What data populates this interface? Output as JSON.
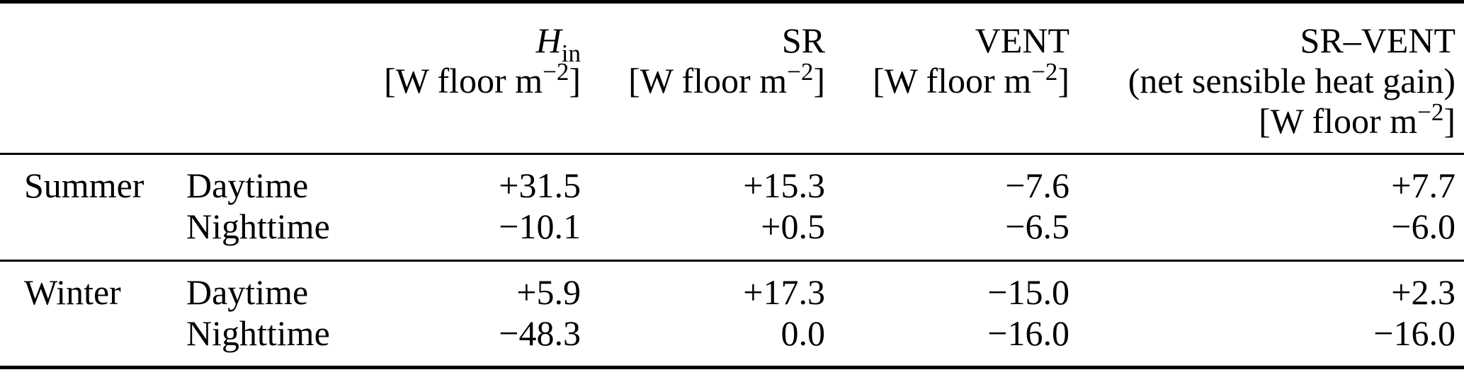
{
  "colors": {
    "text": "#000000",
    "background": "#ffffff",
    "rule": "#000000"
  },
  "table": {
    "header": {
      "h_in": {
        "symbol": "H",
        "subscript": "in",
        "unit_open": "[W floor m",
        "unit_exponent": "−2",
        "unit_close": "]"
      },
      "sr": {
        "label": "SR",
        "unit_open": "[W floor m",
        "unit_exponent": "−2",
        "unit_close": "]"
      },
      "vent": {
        "label": "VENT",
        "unit_open": "[W floor m",
        "unit_exponent": "−2",
        "unit_close": "]"
      },
      "sr_vent": {
        "label": "SR–VENT",
        "note": "(net sensible heat gain)",
        "unit_open": "[W floor m",
        "unit_exponent": "−2",
        "unit_close": "]"
      }
    },
    "rows": [
      {
        "season": "Summer",
        "time": "Daytime",
        "h_in": "+31.5",
        "sr": "+15.3",
        "vent": "−7.6",
        "sr_vent": "+7.7"
      },
      {
        "season": "",
        "time": "Nighttime",
        "h_in": "−10.1",
        "sr": "+0.5",
        "vent": "−6.5",
        "sr_vent": "−6.0"
      },
      {
        "season": "Winter",
        "time": "Daytime",
        "h_in": "+5.9",
        "sr": "+17.3",
        "vent": "−15.0",
        "sr_vent": "+2.3"
      },
      {
        "season": "",
        "time": "Nighttime",
        "h_in": "−48.3",
        "sr": "0.0",
        "vent": "−16.0",
        "sr_vent": "−16.0"
      }
    ]
  }
}
